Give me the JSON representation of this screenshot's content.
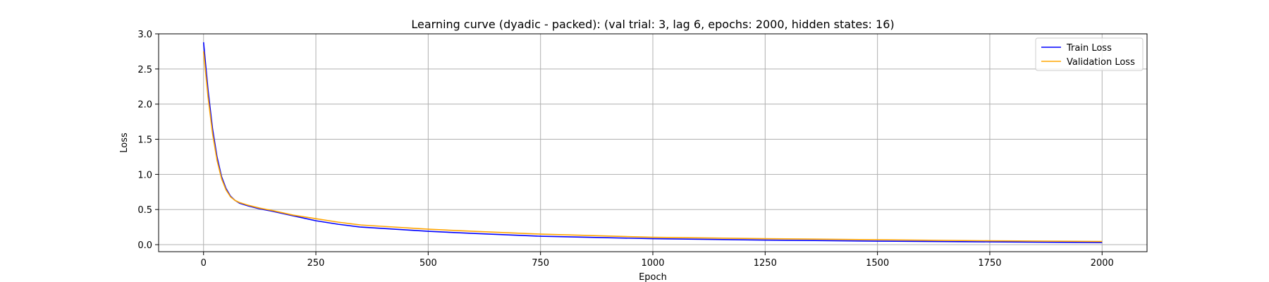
{
  "chart_data": {
    "type": "line",
    "title": "Learning curve (dyadic - packed): (val trial: 3, lag 6, epochs: 2000, hidden states: 16)",
    "xlabel": "Epoch",
    "ylabel": "Loss",
    "xlim": [
      -100,
      2100
    ],
    "ylim": [
      -0.1,
      3.0
    ],
    "xticks": [
      0,
      250,
      500,
      750,
      1000,
      1250,
      1500,
      1750,
      2000
    ],
    "yticks": [
      0.0,
      0.5,
      1.0,
      1.5,
      2.0,
      2.5,
      3.0
    ],
    "grid": true,
    "legend_position": "top-right",
    "series": [
      {
        "name": "Train Loss",
        "color": "#0000ff",
        "x": [
          0,
          10,
          20,
          30,
          40,
          50,
          60,
          70,
          80,
          100,
          125,
          150,
          200,
          250,
          300,
          350,
          400,
          500,
          600,
          750,
          1000,
          1250,
          1500,
          1750,
          2000
        ],
        "y": [
          2.88,
          2.2,
          1.65,
          1.25,
          0.97,
          0.8,
          0.69,
          0.63,
          0.59,
          0.55,
          0.51,
          0.48,
          0.41,
          0.34,
          0.29,
          0.25,
          0.23,
          0.19,
          0.16,
          0.12,
          0.085,
          0.065,
          0.05,
          0.04,
          0.03
        ]
      },
      {
        "name": "Validation Loss",
        "color": "#ffa500",
        "x": [
          0,
          10,
          20,
          30,
          40,
          50,
          60,
          70,
          80,
          100,
          125,
          150,
          200,
          250,
          300,
          350,
          400,
          500,
          600,
          750,
          1000,
          1250,
          1500,
          1750,
          2000
        ],
        "y": [
          2.75,
          2.1,
          1.58,
          1.2,
          0.94,
          0.78,
          0.68,
          0.63,
          0.6,
          0.56,
          0.52,
          0.49,
          0.42,
          0.37,
          0.32,
          0.28,
          0.26,
          0.22,
          0.19,
          0.15,
          0.105,
          0.085,
          0.07,
          0.055,
          0.045
        ]
      }
    ]
  }
}
